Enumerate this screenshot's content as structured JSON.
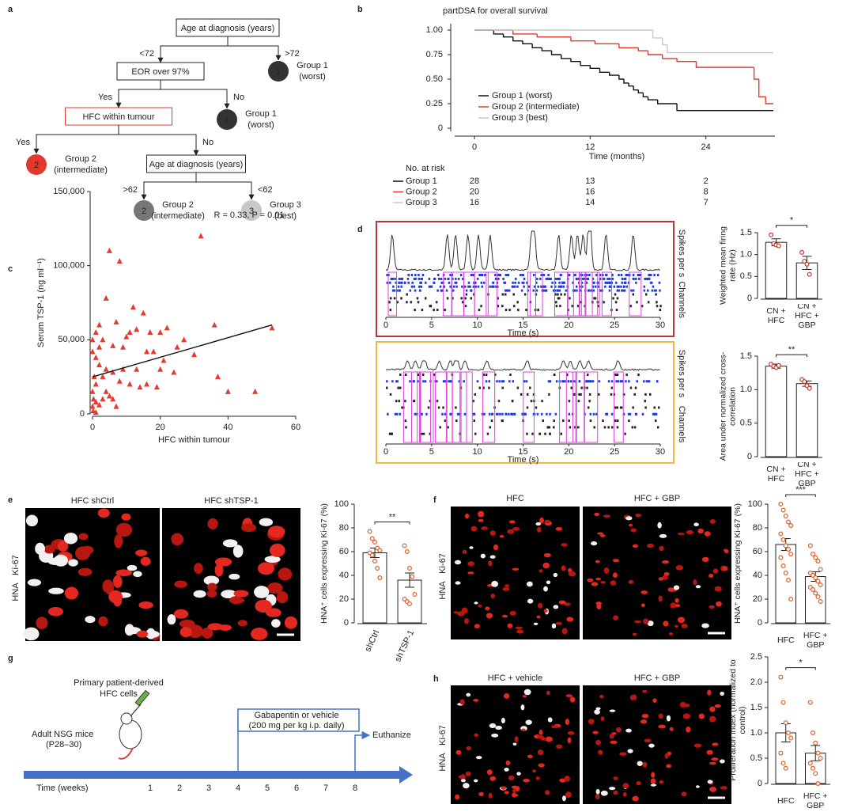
{
  "panel_labels": [
    "a",
    "b",
    "c",
    "d",
    "e",
    "f",
    "g",
    "h"
  ],
  "tree": {
    "nodes": [
      {
        "label": "Age at diagnosis (years)"
      },
      {
        "label": "EOR over 97%"
      },
      {
        "label": "HFC within tumour",
        "label_color": "#e03a2f"
      },
      {
        "label": "Age at diagnosis (years)"
      },
      {
        "badge": "1",
        "label": "Group 1",
        "sublabel": "(worst)",
        "color": "#333333"
      },
      {
        "badge": "1",
        "label": "Group 1",
        "sublabel": "(worst)",
        "color": "#333333"
      },
      {
        "badge": "2",
        "label": "Group 2",
        "sublabel": "(intermediate)",
        "color": "#e03a2f",
        "label_color": "#e03a2f"
      },
      {
        "badge": "2",
        "label": "Group 2",
        "sublabel": "(intermediate)",
        "color": "#777777"
      },
      {
        "badge": "3",
        "label": "Group 3",
        "sublabel": "(best)",
        "color": "#c8c8c8"
      }
    ],
    "edges": [
      {
        "from": 0,
        "to": 1,
        "label": "<72"
      },
      {
        "from": 0,
        "to": 4,
        "label": ">72"
      },
      {
        "from": 1,
        "to": 2,
        "label": "Yes"
      },
      {
        "from": 1,
        "to": 5,
        "label": "No"
      },
      {
        "from": 2,
        "to": 6,
        "label": "Yes"
      },
      {
        "from": 2,
        "to": 3,
        "label": "No"
      },
      {
        "from": 3,
        "to": 7,
        "label": ">62"
      },
      {
        "from": 3,
        "to": 8,
        "label": "<62"
      }
    ]
  },
  "chart_data": [
    {
      "type": "step",
      "title": "partDSA for overall survival",
      "x_label": "Time (months)",
      "xlim": [
        0,
        31
      ],
      "xticks": [
        0,
        12,
        24
      ],
      "ylim": [
        0,
        1
      ],
      "yticks": [
        {
          "value": 1,
          "label": "1.00"
        },
        0.75,
        {
          "value": 0.5,
          "label": "0.50"
        },
        0.25,
        0
      ],
      "legend": "lower left",
      "series": [
        {
          "name": "Group 1 (worst)",
          "color": "#111111",
          "x": [
            0,
            2,
            3,
            4,
            5,
            6,
            7,
            8,
            9,
            10,
            11,
            12,
            13,
            14,
            15,
            15.5,
            16,
            16.5,
            17,
            17.5,
            18,
            19,
            21,
            31
          ],
          "values": [
            1,
            0.96,
            0.93,
            0.89,
            0.86,
            0.82,
            0.79,
            0.75,
            0.71,
            0.68,
            0.64,
            0.61,
            0.57,
            0.54,
            0.5,
            0.46,
            0.43,
            0.39,
            0.36,
            0.32,
            0.29,
            0.25,
            0.18,
            0.18
          ]
        },
        {
          "name": "Group 2 (intermediate)",
          "color": "#e03a2f",
          "x": [
            0,
            4,
            6.5,
            10,
            12.5,
            15,
            17,
            18,
            19.5,
            21,
            23,
            29,
            29.5,
            30.2,
            31
          ],
          "values": [
            1,
            0.96,
            0.93,
            0.89,
            0.86,
            0.82,
            0.79,
            0.75,
            0.71,
            0.68,
            0.62,
            0.5,
            0.32,
            0.25,
            0.25
          ]
        },
        {
          "name": "Group 3 (best)",
          "color": "#c8c8c8",
          "x": [
            0,
            18.5,
            19.5,
            20,
            31
          ],
          "values": [
            1,
            0.92,
            0.85,
            0.77,
            0.77
          ]
        }
      ],
      "risk_table": {
        "title": "No. at risk",
        "rows": [
          {
            "name": "Group 1",
            "counts": [
              "28",
              "13",
              "2"
            ]
          },
          {
            "name": "Group 2",
            "counts": [
              "20",
              "16",
              "8"
            ]
          },
          {
            "name": "Group 3",
            "counts": [
              "16",
              "14",
              "7"
            ]
          }
        ]
      }
    },
    {
      "type": "scatter",
      "x_label": "HFC within tumour",
      "y_label": "Serum TSP-1 (ng ml⁻¹)",
      "annotation": "R = 0.33, P = 0.01",
      "color": "#e53a2f",
      "xlim": [
        0,
        60
      ],
      "xticks": [
        0,
        20,
        40,
        60
      ],
      "ylim": [
        0,
        150000
      ],
      "yticks": [
        0,
        {
          "value": 50000,
          "label": "50,000"
        },
        {
          "value": 100000,
          "label": "100,000"
        },
        {
          "value": 150000,
          "label": "150,000"
        }
      ],
      "x": [
        32,
        5,
        8,
        4,
        12,
        15,
        7,
        2,
        1,
        11,
        13,
        10,
        17,
        20,
        22,
        36,
        53,
        27,
        25,
        6,
        9,
        16,
        18,
        21,
        3,
        0,
        0,
        1,
        2,
        4,
        0.5,
        1,
        3,
        6,
        8,
        11,
        14,
        16,
        19,
        0,
        0.3,
        1,
        2,
        0,
        3,
        5,
        7,
        0.2,
        1,
        13,
        20,
        24,
        37,
        40,
        48,
        30,
        2,
        9,
        4,
        6
      ],
      "values": [
        120000,
        110000,
        103000,
        78000,
        72000,
        68000,
        62000,
        60000,
        55000,
        55000,
        57000,
        52000,
        55000,
        55000,
        58000,
        60000,
        58000,
        50000,
        45000,
        46000,
        45000,
        42000,
        42000,
        36000,
        50000,
        50000,
        42000,
        38000,
        33000,
        30000,
        25000,
        20000,
        25000,
        28000,
        22000,
        20000,
        18000,
        20000,
        18000,
        15000,
        10000,
        8000,
        6000,
        5000,
        10000,
        12000,
        5000,
        2000,
        1000,
        30000,
        30000,
        28000,
        25000,
        15000,
        15000,
        40000,
        45000,
        30000,
        15000,
        10000
      ],
      "trend": {
        "x": [
          0,
          53
        ],
        "values": [
          25000,
          60000
        ]
      }
    },
    {
      "type": "raster",
      "border": "#b5363a",
      "x_label": "Time (s)",
      "y_labels": [
        "Spikes per s",
        "Channels"
      ],
      "xlim": [
        0,
        30
      ],
      "xticks": [
        0,
        5,
        10,
        15,
        20,
        25,
        30
      ]
    },
    {
      "type": "raster",
      "border": "#f0b840",
      "x_label": "Time (s)",
      "y_labels": [
        "Spikes per s",
        "Channels"
      ],
      "xlim": [
        0,
        30
      ],
      "xticks": [
        0,
        5,
        10,
        15,
        20,
        25,
        30
      ]
    },
    {
      "type": "bar",
      "y_label": "Weighted mean firing rate (Hz)",
      "categories": [
        "CN + HFC",
        "CN + HFC + GBP"
      ],
      "values": [
        1.28,
        0.81
      ],
      "errors": [
        0.08,
        0.15
      ],
      "points": [
        [
          1.45,
          1.25,
          1.22,
          1.2
        ],
        [
          1.05,
          0.85,
          0.78,
          0.55
        ]
      ],
      "significance": "*",
      "color": "#ffffff",
      "point_color": "#c0392b",
      "ylim": [
        0,
        1.5
      ],
      "yticks": [
        0,
        0.5,
        {
          "value": 1,
          "label": "1.0"
        },
        1.5
      ]
    },
    {
      "type": "bar",
      "y_label": "Area under normalized cross-correlation",
      "categories": [
        "CN + HFC",
        "CN + HFC + GBP"
      ],
      "values": [
        1.35,
        1.09
      ],
      "errors": [
        0.03,
        0.04
      ],
      "points": [
        [
          1.38,
          1.35,
          1.33,
          1.36
        ],
        [
          1.15,
          1.12,
          1.06,
          1.02
        ]
      ],
      "significance": "**",
      "color": "#ffffff",
      "point_color": "#c0392b",
      "ylim": [
        0,
        1.5
      ],
      "yticks": [
        0,
        0.5,
        {
          "value": 1,
          "label": "1.0"
        },
        1.5
      ]
    },
    {
      "type": "bar",
      "y_label": "HNA⁺ cells expressing Ki-67 (%)",
      "categories": [
        "shCtrl",
        "shTSP-1"
      ],
      "values": [
        59,
        36
      ],
      "errors": [
        4,
        6
      ],
      "points": [
        [
          77,
          71,
          68,
          63,
          61,
          59,
          57,
          52,
          46,
          38
        ],
        [
          65,
          60,
          46,
          39,
          24,
          20,
          18,
          16
        ]
      ],
      "significance": "**",
      "color": "#ffffff",
      "point_color": "#d9622b",
      "ylim": [
        0,
        100
      ],
      "yticks": [
        0,
        20,
        40,
        60,
        80,
        100
      ]
    },
    {
      "type": "bar",
      "y_label": "HNA⁺ cells expressing Ki-67 (%)",
      "categories": [
        "HFC",
        "HFC + GBP"
      ],
      "values": [
        66,
        39
      ],
      "errors": [
        5,
        4
      ],
      "points": [
        [
          100,
          95,
          90,
          85,
          82,
          75,
          70,
          65,
          62,
          58,
          55,
          48,
          42,
          36,
          20
        ],
        [
          65,
          58,
          55,
          52,
          45,
          42,
          40,
          38,
          35,
          32,
          30,
          28,
          25,
          22,
          18
        ]
      ],
      "significance": "***",
      "color": "#ffffff",
      "point_color": "#d9622b",
      "ylim": [
        0,
        100
      ],
      "yticks": [
        0,
        20,
        40,
        60,
        80,
        100
      ]
    },
    {
      "type": "bar",
      "y_label": "Proliferation index (normalized to control)",
      "categories": [
        "HFC",
        "HFC + GBP"
      ],
      "values": [
        1.0,
        0.6
      ],
      "errors": [
        0.18,
        0.15
      ],
      "points": [
        [
          2.1,
          1.6,
          1.2,
          1.0,
          0.9,
          0.6,
          0.4,
          0.3
        ],
        [
          1.6,
          1.0,
          0.8,
          0.6,
          0.5,
          0.4,
          0.3,
          0.2,
          0
        ]
      ],
      "significance": "*",
      "color": "#ffffff",
      "point_color": "#d9622b",
      "ylim": [
        0,
        2.5
      ],
      "yticks": [
        0,
        0.5,
        {
          "value": 1,
          "label": "1.0"
        },
        1.5,
        {
          "value": 2,
          "label": "2.0"
        },
        2.5
      ]
    }
  ],
  "micrographs": [
    {
      "titles": [
        "HFC shCtrl",
        "HFC shTSP-1"
      ],
      "stain_red": "HNA",
      "stain_white": "Ki-67"
    },
    {
      "titles": [
        "HFC",
        "HFC + GBP"
      ],
      "stain_red": "HNA",
      "stain_white": "Ki-67"
    },
    {
      "titles": [
        "HFC + vehicle",
        "HFC + GBP"
      ],
      "stain_red": "HNA",
      "stain_white": "Ki-67"
    }
  ],
  "timeline": {
    "injection_lines": [
      "Primary patient-derived",
      "HFC cells"
    ],
    "treatment_lines": [
      "Gabapentin or vehicle",
      "(200 mg per kg i.p. daily)"
    ],
    "end_label": "Euthanize",
    "start_lines": [
      "Adult NSG mice",
      "(P28–30)"
    ],
    "axis_label": "Time (weeks)",
    "weeks": [
      1,
      2,
      3,
      4,
      5,
      6,
      7,
      8
    ],
    "color": "#4472c4"
  }
}
